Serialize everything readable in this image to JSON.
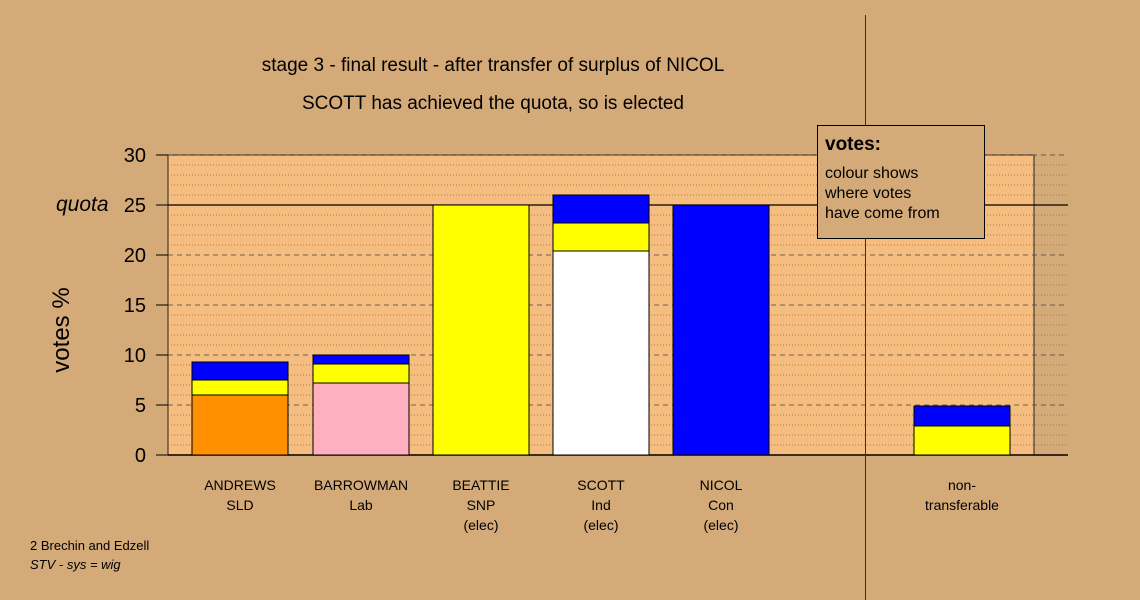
{
  "titles": {
    "line1": "stage 3 - final result - after transfer of surplus of NICOL",
    "line2": "SCOTT has achieved the quota, so is elected"
  },
  "quota_label": "quota",
  "legend": {
    "title": "votes:",
    "lines": [
      "colour shows",
      "where votes",
      "have come from"
    ]
  },
  "footer": {
    "line1": "2 Brechin and Edzell",
    "line2": "STV - sys = wig"
  },
  "colors": {
    "background": "#d4aa78",
    "plot_background": "#f5bd80",
    "SLD": "#ff9000",
    "Lab": "#ffb0c0",
    "SNP": "#ffff00",
    "Ind": "#ffffff",
    "Con": "#0000ff"
  },
  "chart_data": {
    "type": "bar",
    "stacked": true,
    "ylabel": "votes %",
    "ylim": [
      0,
      30
    ],
    "yticks": [
      0,
      5,
      10,
      15,
      20,
      25,
      30
    ],
    "quota": 25,
    "grid": true,
    "categories": [
      {
        "name": "ANDREWS",
        "party": "SLD",
        "note": ""
      },
      {
        "name": "BARROWMAN",
        "party": "Lab",
        "note": ""
      },
      {
        "name": "BEATTIE",
        "party": "SNP",
        "note": "(elec)"
      },
      {
        "name": "SCOTT",
        "party": "Ind",
        "note": "(elec)"
      },
      {
        "name": "NICOL",
        "party": "Con",
        "note": "(elec)"
      },
      {
        "name": "non-",
        "party": "transferable",
        "note": ""
      }
    ],
    "bars": [
      {
        "category": "ANDREWS",
        "segments": [
          {
            "source": "SLD",
            "value": 6.0
          },
          {
            "source": "SNP",
            "value": 1.5
          },
          {
            "source": "Con",
            "value": 1.8
          }
        ]
      },
      {
        "category": "BARROWMAN",
        "segments": [
          {
            "source": "Lab",
            "value": 7.2
          },
          {
            "source": "SNP",
            "value": 1.9
          },
          {
            "source": "Con",
            "value": 0.9
          }
        ]
      },
      {
        "category": "BEATTIE",
        "segments": [
          {
            "source": "SNP",
            "value": 25.0
          }
        ]
      },
      {
        "category": "SCOTT",
        "segments": [
          {
            "source": "Ind",
            "value": 20.4
          },
          {
            "source": "SNP",
            "value": 2.8
          },
          {
            "source": "Con",
            "value": 2.8
          }
        ]
      },
      {
        "category": "NICOL",
        "segments": [
          {
            "source": "Con",
            "value": 25.0
          }
        ]
      },
      {
        "category": "non-transferable",
        "segments": [
          {
            "source": "SNP",
            "value": 2.9
          },
          {
            "source": "Con",
            "value": 2.0
          }
        ]
      }
    ]
  }
}
